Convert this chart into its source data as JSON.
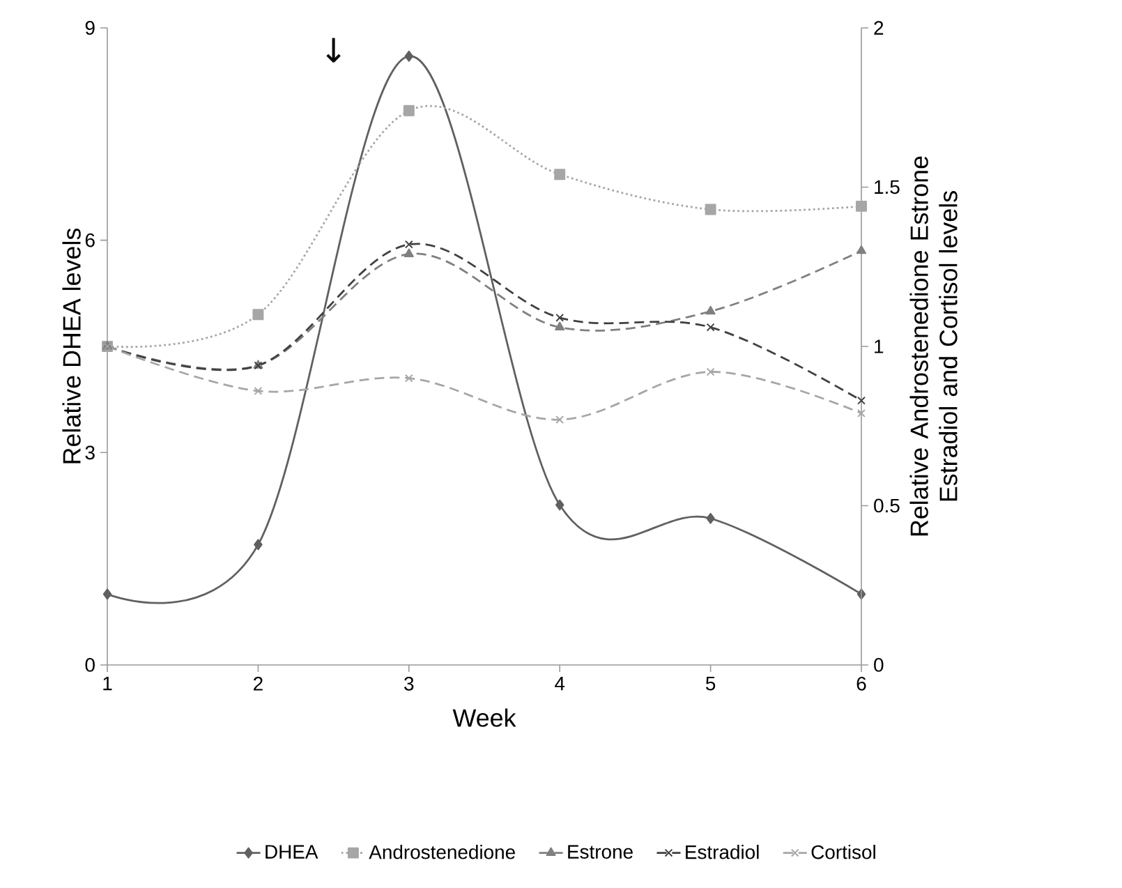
{
  "chart_data": {
    "type": "line",
    "xlabel": "Week",
    "ylabel": "Relative DHEA levels",
    "y2label": "Relative  Androstenedione Estrone Estradiol and Cortisol levels",
    "x": [
      1,
      2,
      3,
      4,
      5,
      6
    ],
    "xlim": [
      1,
      6
    ],
    "xticks": [
      1,
      2,
      3,
      4,
      5,
      6
    ],
    "ylim": [
      0,
      9
    ],
    "yticks": [
      0,
      3,
      6,
      9
    ],
    "y2lim": [
      0,
      2
    ],
    "y2ticks": [
      0,
      0.5,
      1,
      1.5,
      2
    ],
    "series": [
      {
        "name": "DHEA",
        "color": "#606060",
        "values": [
          1.0,
          1.7,
          8.6,
          2.26,
          2.07,
          1.0
        ],
        "marker": "diamond",
        "line_style": "solid"
      },
      {
        "name": "Androstenedione",
        "color": "#a6a6a6",
        "values": [
          1.0,
          1.1,
          1.74,
          1.54,
          1.43,
          1.44
        ],
        "axis": "y2",
        "marker": "square",
        "line_style": "dotted"
      },
      {
        "name": "Estrone",
        "color": "#808080",
        "values": [
          1.0,
          0.94,
          1.29,
          1.06,
          1.11,
          1.3
        ],
        "axis": "y2",
        "marker": "triangle",
        "line_style": "dashed"
      },
      {
        "name": "Estradiol",
        "color": "#404040",
        "values": [
          1.0,
          0.94,
          1.32,
          1.09,
          1.06,
          0.83
        ],
        "axis": "y2",
        "marker": "cross",
        "line_style": "dashed"
      },
      {
        "name": "Cortisol",
        "color": "#a6a6a6",
        "values": [
          1.0,
          0.86,
          0.9,
          0.77,
          0.92,
          0.79
        ],
        "axis": "y2",
        "marker": "cross",
        "line_style": "dashed"
      }
    ],
    "annotations": [
      "↓"
    ],
    "legend": "bottom",
    "grid": false
  }
}
